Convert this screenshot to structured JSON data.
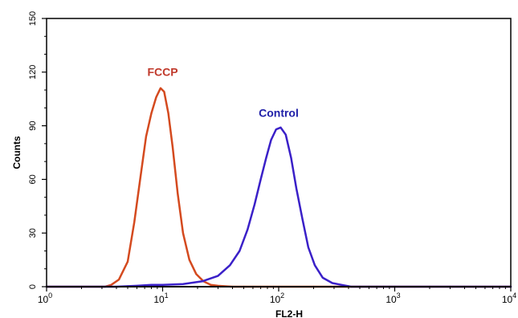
{
  "chart_data": {
    "type": "line",
    "xlabel": "FL2-H",
    "ylabel": "Counts",
    "xscale": "log",
    "xlim": [
      1,
      10000
    ],
    "ylim": [
      0,
      150
    ],
    "grid": false,
    "x_ticks": [
      {
        "value": 1,
        "base": "10",
        "exponent": "0"
      },
      {
        "value": 10,
        "base": "10",
        "exponent": "1"
      },
      {
        "value": 100,
        "base": "10",
        "exponent": "2"
      },
      {
        "value": 1000,
        "base": "10",
        "exponent": "3"
      },
      {
        "value": 10000,
        "base": "10",
        "exponent": "4"
      }
    ],
    "y_ticks": [
      "0",
      "30",
      "60",
      "90",
      "120",
      "150"
    ],
    "series": [
      {
        "name": "FCCP",
        "color": "#d44a1f",
        "x": [
          1,
          3.2,
          3.6,
          4.2,
          5.0,
          5.7,
          6.4,
          7.2,
          8.0,
          8.8,
          9.6,
          10.3,
          11.2,
          12.2,
          13.5,
          15.0,
          17.0,
          19.5,
          22.5,
          26.0,
          30.0,
          36.0,
          40.0,
          10000
        ],
        "y": [
          0,
          0,
          1,
          4,
          14,
          36,
          60,
          84,
          97,
          106,
          111,
          109,
          97,
          78,
          52,
          30,
          15,
          7,
          3,
          1,
          0.5,
          0.2,
          0,
          0
        ]
      },
      {
        "name": "Control",
        "color": "#3a20c8",
        "x": [
          1,
          4.0,
          6.0,
          8.0,
          10.0,
          15.0,
          22.0,
          30.0,
          38.0,
          46.0,
          54.0,
          62.0,
          70.0,
          78.0,
          86.0,
          95.0,
          104.0,
          115.0,
          128.0,
          142.0,
          160.0,
          180.0,
          205.0,
          240.0,
          290.0,
          350.0,
          420.0,
          10000
        ],
        "y": [
          0,
          0,
          0.5,
          1,
          1,
          1.5,
          3,
          6,
          12,
          20,
          32,
          46,
          60,
          72,
          82,
          88,
          89,
          85,
          72,
          55,
          38,
          22,
          12,
          5,
          2,
          1,
          0,
          0
        ]
      }
    ],
    "annotations": [
      {
        "text": "FCCP",
        "color": "#c0392b",
        "x": 10,
        "y": 118
      },
      {
        "text": "Control",
        "color": "#1f1fa8",
        "x": 100,
        "y": 95
      }
    ]
  }
}
